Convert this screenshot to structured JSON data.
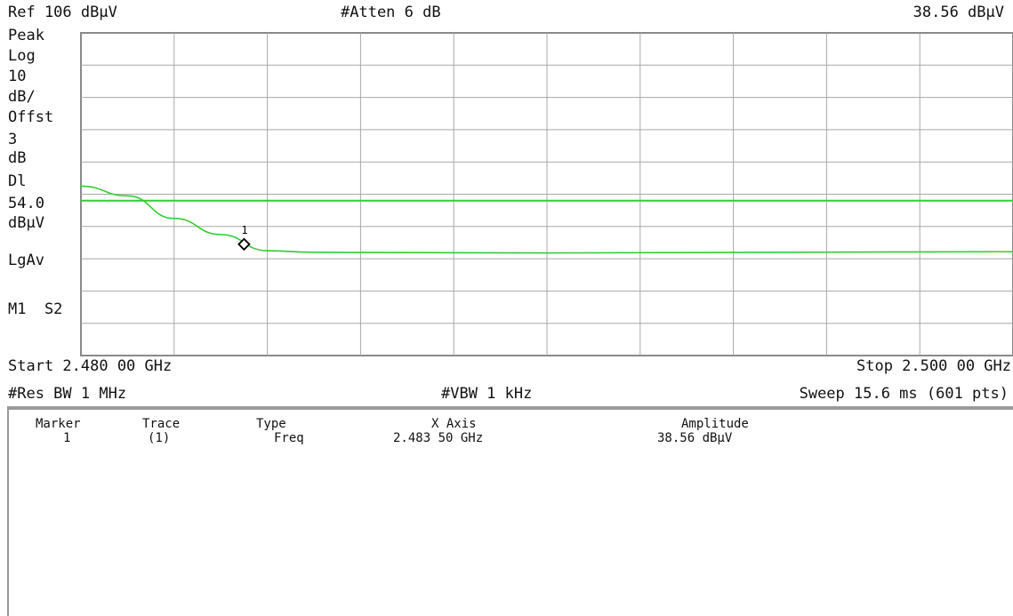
{
  "header": {
    "ref_level": "Ref 106 dBμV",
    "attenuation": "#Atten 6 dB",
    "marker_readout": "38.56 dBμV"
  },
  "left_annotations": {
    "detector": "Peak",
    "scale_type": "Log",
    "scale_value": "10",
    "scale_unit": "dB/",
    "offset_label": "Offst",
    "offset_value": "3",
    "offset_unit": "dB",
    "display_line_label": "Dl",
    "display_line_value": "54.0",
    "display_line_unit": "dBμV",
    "averaging": "LgAv",
    "marker_state": "M1  S2"
  },
  "footer": {
    "start": "Start 2.480 00 GHz",
    "stop": "Stop 2.500 00 GHz",
    "rbw": "#Res BW 1 MHz",
    "vbw": "#VBW 1 kHz",
    "sweep": "Sweep 15.6 ms (601 pts)"
  },
  "marker_table": {
    "headers": [
      "Marker",
      "Trace",
      "Type",
      "X Axis",
      "Amplitude"
    ],
    "rows": [
      [
        "1",
        "(1)",
        "Freq",
        "2.483 50 GHz",
        "38.56 dBμV"
      ]
    ]
  },
  "chart_data": {
    "type": "line",
    "x_start_ghz": 2.48,
    "x_stop_ghz": 2.5,
    "ref_level_dbuv": 106,
    "scale_db_per_div": 10,
    "grid": true,
    "display_line_dbuv": 54.0,
    "series": [
      {
        "color": "#33cc33",
        "x": [
          2.48,
          2.481,
          2.482,
          2.483,
          2.484,
          2.485,
          2.49,
          2.495,
          2.5
        ],
        "y": [
          58.5,
          55.5,
          48.5,
          43.5,
          38.5,
          38.0,
          37.8,
          38.0,
          38.2
        ]
      }
    ],
    "marker": {
      "label": "1",
      "x": 2.4835,
      "y": 38.56
    }
  }
}
